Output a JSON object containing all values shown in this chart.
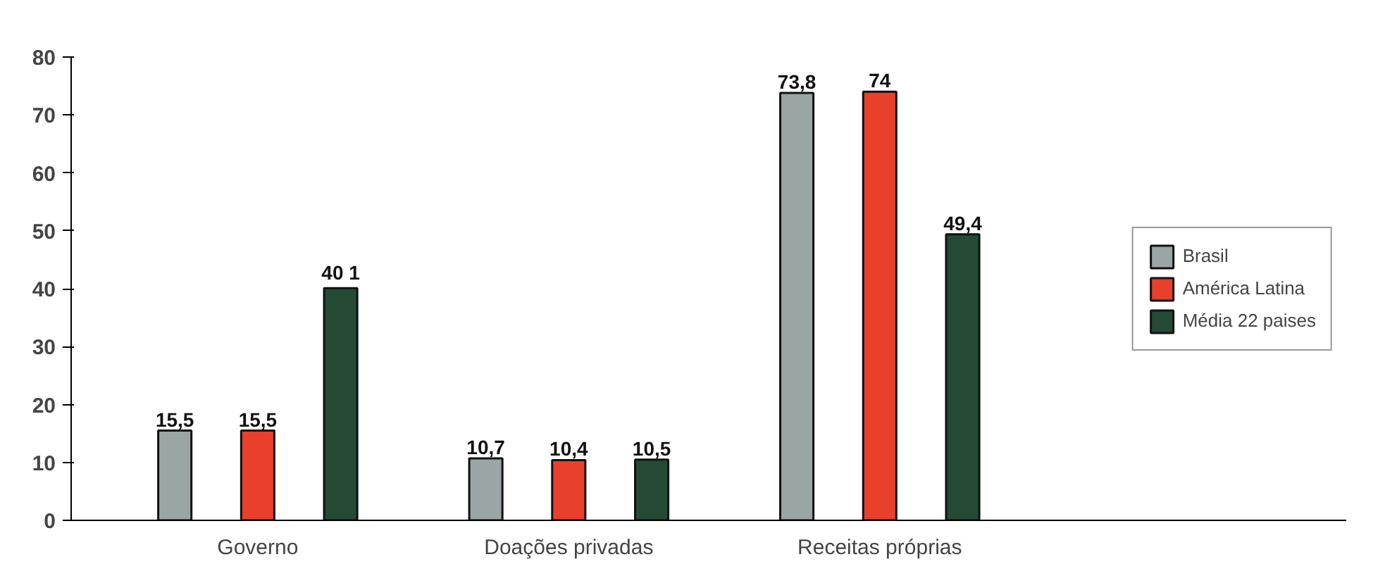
{
  "chart_data": {
    "type": "bar",
    "categories": [
      "Governo",
      "Doações privadas",
      "Receitas próprias"
    ],
    "series": [
      {
        "name": "Brasil",
        "color": "#9aa5a5",
        "values": [
          15.5,
          10.7,
          73.8
        ],
        "value_labels": [
          "15,5",
          "10,7",
          "73,8"
        ]
      },
      {
        "name": "América Latina",
        "color": "#e8402a",
        "values": [
          15.5,
          10.4,
          74
        ],
        "value_labels": [
          "15,5",
          "10,4",
          "74"
        ]
      },
      {
        "name": "Média 22 paises",
        "color": "#244a35",
        "values": [
          40.1,
          10.5,
          49.4
        ],
        "value_labels": [
          "40 1",
          "10,5",
          "49,4"
        ]
      }
    ],
    "ylim": [
      0,
      80
    ],
    "yticks": [
      0,
      10,
      20,
      30,
      40,
      50,
      60,
      70,
      80
    ],
    "grid": false,
    "legend": "right"
  }
}
